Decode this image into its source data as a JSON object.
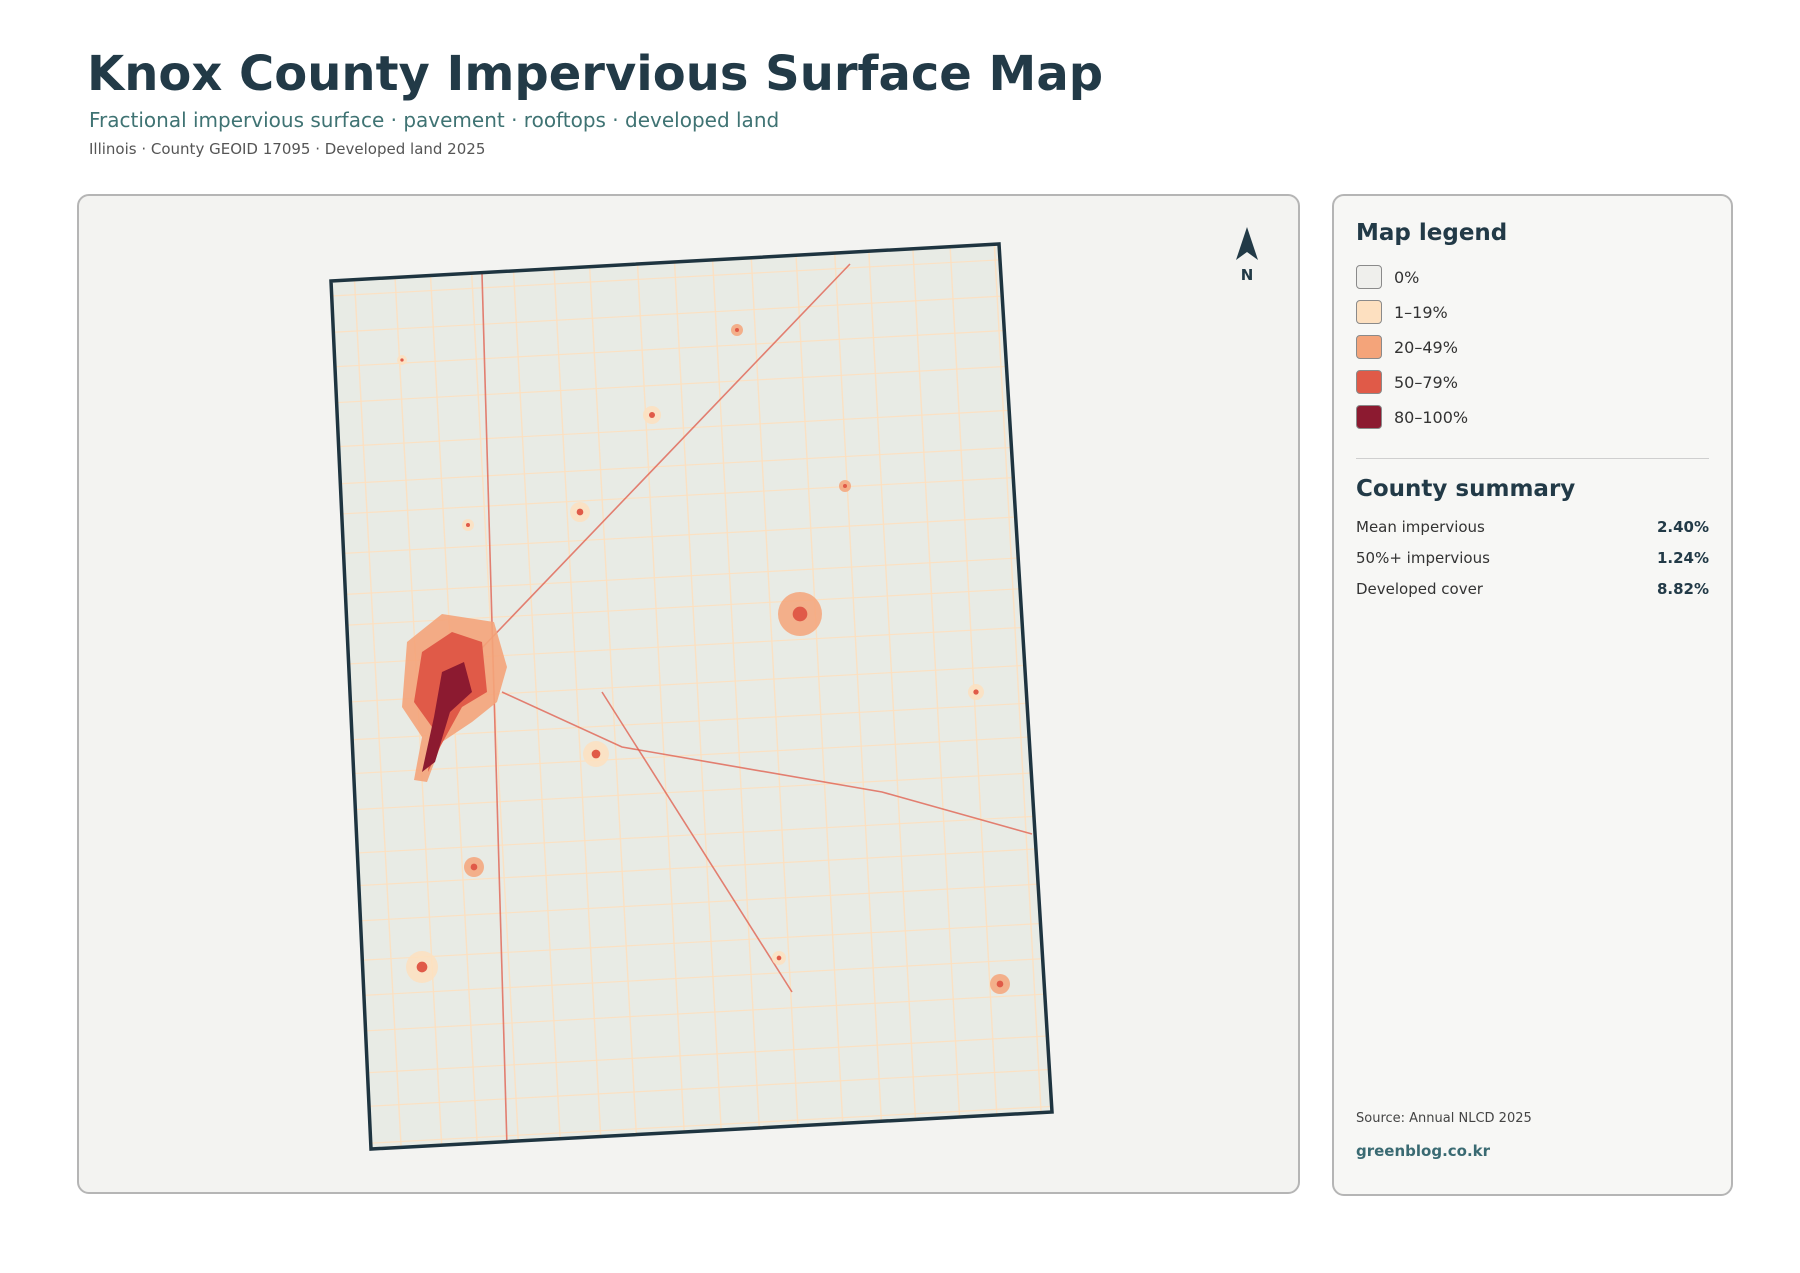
{
  "header": {
    "title": "Knox County Impervious Surface Map",
    "subtitle": "Fractional impervious surface · pavement · rooftops · developed land",
    "meta": "Illinois · County GEOID 17095 · Developed land 2025"
  },
  "map": {
    "north": "N"
  },
  "legend": {
    "title": "Map legend",
    "items": [
      {
        "label": "0%",
        "color": "#efefec"
      },
      {
        "label": "1–19%",
        "color": "#fde0c0"
      },
      {
        "label": "20–49%",
        "color": "#f4a47a"
      },
      {
        "label": "50–79%",
        "color": "#e05a48"
      },
      {
        "label": "80–100%",
        "color": "#8c1a30"
      }
    ]
  },
  "summary": {
    "title": "County summary",
    "rows": [
      {
        "label": "Mean impervious",
        "value": "2.40%"
      },
      {
        "label": "50%+ impervious",
        "value": "1.24%"
      },
      {
        "label": "Developed cover",
        "value": "8.82%"
      }
    ]
  },
  "footer": {
    "source": "Source: Annual NLCD 2025",
    "site": "greenblog.co.kr"
  }
}
